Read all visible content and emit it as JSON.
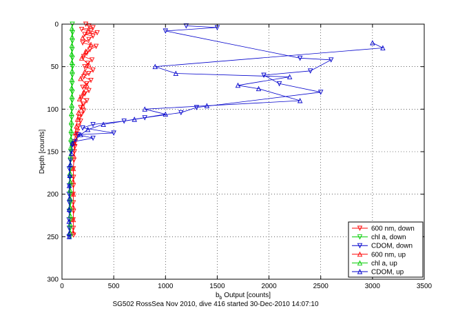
{
  "figure": {
    "caption": "SG502 RossSea Nov 2010, dive 416 started 30-Dec-2010 14:07:10"
  },
  "chart_data": {
    "type": "scatter",
    "title": "",
    "xlabel_main": "b",
    "xlabel_sub": "b",
    "xlabel_rest": " Output [counts]",
    "ylabel": "Depth [counts]",
    "xlim": [
      0,
      3500
    ],
    "ylim": [
      0,
      300
    ],
    "y_reversed": true,
    "grid": true,
    "grid_style": "dotted",
    "legend_position": "bottom-right",
    "x_ticks": [
      "0",
      "500",
      "1000",
      "1500",
      "2000",
      "2500",
      "3000",
      "3500"
    ],
    "y_ticks": [
      "0",
      "50",
      "100",
      "150",
      "200",
      "250",
      "300"
    ],
    "x_tick_values": [
      0,
      500,
      1000,
      1500,
      2000,
      2500,
      3000,
      3500
    ],
    "y_tick_values": [
      0,
      50,
      100,
      150,
      200,
      250,
      300
    ],
    "series": [
      {
        "name": "600 nm, down",
        "color": "#ff0000",
        "marker": "triangle-down",
        "points": [
          [
            230,
            0
          ],
          [
            260,
            2
          ],
          [
            300,
            4
          ],
          [
            190,
            6
          ],
          [
            280,
            8
          ],
          [
            340,
            10
          ],
          [
            220,
            12
          ],
          [
            300,
            14
          ],
          [
            260,
            18
          ],
          [
            200,
            22
          ],
          [
            330,
            26
          ],
          [
            270,
            30
          ],
          [
            240,
            34
          ],
          [
            210,
            38
          ],
          [
            290,
            42
          ],
          [
            250,
            46
          ],
          [
            220,
            50
          ],
          [
            300,
            54
          ],
          [
            260,
            58
          ],
          [
            210,
            62
          ],
          [
            280,
            66
          ],
          [
            240,
            70
          ],
          [
            200,
            74
          ],
          [
            260,
            78
          ],
          [
            220,
            82
          ],
          [
            190,
            86
          ],
          [
            240,
            90
          ],
          [
            210,
            94
          ],
          [
            180,
            98
          ],
          [
            210,
            102
          ],
          [
            190,
            106
          ],
          [
            170,
            110
          ],
          [
            180,
            114
          ],
          [
            160,
            120
          ],
          [
            150,
            126
          ],
          [
            140,
            132
          ],
          [
            130,
            138
          ],
          [
            125,
            144
          ],
          [
            120,
            150
          ],
          [
            115,
            160
          ],
          [
            110,
            170
          ],
          [
            112,
            180
          ],
          [
            110,
            190
          ],
          [
            108,
            200
          ],
          [
            110,
            210
          ],
          [
            112,
            220
          ],
          [
            108,
            230
          ],
          [
            110,
            240
          ],
          [
            112,
            248
          ]
        ]
      },
      {
        "name": "chl a, down",
        "color": "#00cc00",
        "marker": "triangle-down",
        "points": [
          [
            100,
            0
          ],
          [
            102,
            10
          ],
          [
            100,
            20
          ],
          [
            98,
            30
          ],
          [
            100,
            40
          ],
          [
            102,
            50
          ],
          [
            100,
            60
          ],
          [
            98,
            70
          ],
          [
            100,
            80
          ],
          [
            98,
            90
          ],
          [
            96,
            100
          ],
          [
            94,
            110
          ],
          [
            92,
            120
          ],
          [
            90,
            130
          ],
          [
            88,
            140
          ],
          [
            86,
            150
          ],
          [
            84,
            160
          ],
          [
            82,
            170
          ],
          [
            80,
            180
          ],
          [
            82,
            190
          ],
          [
            80,
            200
          ],
          [
            82,
            210
          ],
          [
            80,
            220
          ],
          [
            82,
            230
          ],
          [
            80,
            240
          ],
          [
            82,
            250
          ]
        ]
      },
      {
        "name": "CDOM, down",
        "color": "#0000cc",
        "marker": "triangle-down",
        "points": [
          [
            1200,
            2
          ],
          [
            1500,
            4
          ],
          [
            1000,
            8
          ],
          [
            2300,
            40
          ],
          [
            2600,
            42
          ],
          [
            2400,
            55
          ],
          [
            1950,
            60
          ],
          [
            2100,
            70
          ],
          [
            2500,
            80
          ],
          [
            1300,
            98
          ],
          [
            1150,
            104
          ],
          [
            800,
            110
          ],
          [
            600,
            114
          ],
          [
            300,
            118
          ],
          [
            200,
            122
          ],
          [
            500,
            128
          ],
          [
            150,
            130
          ],
          [
            300,
            134
          ],
          [
            120,
            138
          ],
          [
            100,
            142
          ],
          [
            90,
            150
          ],
          [
            80,
            160
          ],
          [
            70,
            170
          ],
          [
            75,
            180
          ],
          [
            70,
            190
          ],
          [
            68,
            200
          ],
          [
            72,
            210
          ],
          [
            70,
            220
          ],
          [
            68,
            230
          ],
          [
            70,
            240
          ],
          [
            68,
            250
          ]
        ]
      },
      {
        "name": "600 nm, up",
        "color": "#ff0000",
        "marker": "triangle-up",
        "points": [
          [
            250,
            8
          ],
          [
            200,
            16
          ],
          [
            280,
            24
          ],
          [
            230,
            32
          ],
          [
            190,
            40
          ],
          [
            260,
            48
          ],
          [
            220,
            56
          ],
          [
            180,
            64
          ],
          [
            240,
            72
          ],
          [
            210,
            80
          ],
          [
            170,
            88
          ],
          [
            200,
            96
          ],
          [
            160,
            104
          ],
          [
            150,
            112
          ],
          [
            140,
            120
          ],
          [
            130,
            128
          ],
          [
            120,
            140
          ],
          [
            115,
            155
          ],
          [
            110,
            170
          ],
          [
            108,
            185
          ],
          [
            110,
            200
          ],
          [
            108,
            215
          ],
          [
            110,
            230
          ],
          [
            108,
            245
          ]
        ]
      },
      {
        "name": "chl a, up",
        "color": "#00cc00",
        "marker": "triangle-up",
        "points": [
          [
            96,
            5
          ],
          [
            98,
            15
          ],
          [
            96,
            25
          ],
          [
            94,
            35
          ],
          [
            96,
            45
          ],
          [
            98,
            55
          ],
          [
            96,
            65
          ],
          [
            94,
            75
          ],
          [
            96,
            85
          ],
          [
            94,
            95
          ],
          [
            92,
            105
          ],
          [
            90,
            115
          ],
          [
            88,
            125
          ],
          [
            86,
            135
          ],
          [
            84,
            145
          ],
          [
            82,
            155
          ],
          [
            80,
            165
          ],
          [
            78,
            175
          ],
          [
            80,
            185
          ],
          [
            78,
            195
          ],
          [
            80,
            205
          ],
          [
            78,
            215
          ],
          [
            80,
            225
          ],
          [
            78,
            235
          ],
          [
            80,
            245
          ]
        ]
      },
      {
        "name": "CDOM, up",
        "color": "#0000cc",
        "marker": "triangle-up",
        "points": [
          [
            3000,
            22
          ],
          [
            3100,
            28
          ],
          [
            900,
            50
          ],
          [
            1100,
            58
          ],
          [
            2200,
            62
          ],
          [
            1700,
            72
          ],
          [
            1900,
            76
          ],
          [
            2300,
            90
          ],
          [
            800,
            100
          ],
          [
            1400,
            96
          ],
          [
            1000,
            106
          ],
          [
            700,
            112
          ],
          [
            400,
            118
          ],
          [
            250,
            124
          ],
          [
            180,
            130
          ],
          [
            100,
            140
          ],
          [
            90,
            152
          ],
          [
            80,
            165
          ],
          [
            75,
            178
          ],
          [
            70,
            190
          ],
          [
            72,
            205
          ],
          [
            70,
            218
          ],
          [
            68,
            232
          ],
          [
            70,
            246
          ],
          [
            70,
            250
          ]
        ]
      }
    ]
  }
}
